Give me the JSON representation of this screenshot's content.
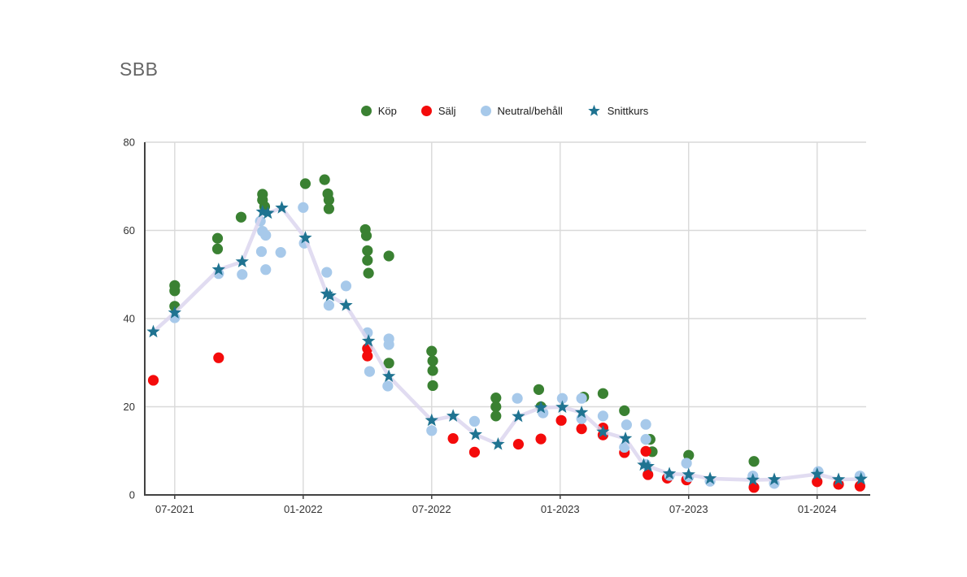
{
  "title": "SBB",
  "legend": {
    "items": [
      {
        "label": "Köp",
        "marker": "circle-icon"
      },
      {
        "label": "Sälj",
        "marker": "circle-icon"
      },
      {
        "label": "Neutral/behåll",
        "marker": "circle-icon"
      },
      {
        "label": "Snittkurs",
        "marker": "star-icon"
      }
    ]
  },
  "chart_data": {
    "type": "scatter",
    "title": "SBB",
    "xlabel": "",
    "ylabel": "",
    "x_unit": "months since 2021-06",
    "xticks": [
      {
        "t": 1,
        "label": "07-2021"
      },
      {
        "t": 7,
        "label": "01-2022"
      },
      {
        "t": 13,
        "label": "07-2022"
      },
      {
        "t": 19,
        "label": "01-2023"
      },
      {
        "t": 25,
        "label": "07-2023"
      },
      {
        "t": 31,
        "label": "01-2024"
      }
    ],
    "yticks": [
      0,
      20,
      40,
      60,
      80
    ],
    "ylim": [
      0,
      80
    ],
    "grid": true,
    "legend_position": "top-center",
    "colors": {
      "grid": "#d9d9d9",
      "axis": "#424242",
      "line": "#dcd6ef",
      "title_text": "#666666",
      "tick_text": "#333333"
    },
    "series": [
      {
        "name": "Köp",
        "marker": "circle",
        "color": "#3a8132",
        "points": [
          [
            1,
            47.5
          ],
          [
            1,
            46.3
          ],
          [
            1,
            42.8
          ],
          [
            3,
            58.2
          ],
          [
            3,
            55.8
          ],
          [
            4.1,
            63
          ],
          [
            5.1,
            68.2
          ],
          [
            5.1,
            66.9
          ],
          [
            5.2,
            65.4
          ],
          [
            7.1,
            70.6
          ],
          [
            8,
            71.5
          ],
          [
            8.15,
            68.3
          ],
          [
            8.2,
            66.9
          ],
          [
            8.2,
            64.9
          ],
          [
            9.9,
            60.2
          ],
          [
            9.95,
            58.8
          ],
          [
            10,
            55.4
          ],
          [
            10,
            53.2
          ],
          [
            10.05,
            50.3
          ],
          [
            11,
            54.2
          ],
          [
            11,
            29.9
          ],
          [
            13,
            32.6
          ],
          [
            13.05,
            30.4
          ],
          [
            13.05,
            28.2
          ],
          [
            13.05,
            24.8
          ],
          [
            16,
            22
          ],
          [
            16,
            20
          ],
          [
            16,
            17.9
          ],
          [
            18,
            23.9
          ],
          [
            18.1,
            20
          ],
          [
            20.1,
            22.2
          ],
          [
            21,
            23
          ],
          [
            22,
            19.1
          ],
          [
            23.2,
            12.6
          ],
          [
            23.3,
            9.8
          ],
          [
            25,
            9
          ],
          [
            28.05,
            7.6
          ]
        ]
      },
      {
        "name": "Sälj",
        "marker": "circle",
        "color": "#f40b0b",
        "points": [
          [
            0,
            26
          ],
          [
            3.05,
            31.1
          ],
          [
            10,
            33.2
          ],
          [
            10,
            31.5
          ],
          [
            14,
            12.8
          ],
          [
            15,
            9.7
          ],
          [
            17.05,
            11.5
          ],
          [
            18.1,
            12.7
          ],
          [
            19.05,
            16.9
          ],
          [
            20,
            15
          ],
          [
            21,
            15.2
          ],
          [
            21,
            13.6
          ],
          [
            22,
            9.6
          ],
          [
            23,
            9.9
          ],
          [
            23.1,
            4.6
          ],
          [
            24,
            3.8
          ],
          [
            24.9,
            3.4
          ],
          [
            28.05,
            1.7
          ],
          [
            31,
            3
          ],
          [
            32,
            2.4
          ],
          [
            33,
            2
          ]
        ]
      },
      {
        "name": "Neutral/behåll",
        "marker": "circle",
        "color": "#a7c9ea",
        "points": [
          [
            1,
            40.2
          ],
          [
            3.05,
            50.2
          ],
          [
            4.15,
            50
          ],
          [
            5,
            62.1
          ],
          [
            5.1,
            59.8
          ],
          [
            5.25,
            58.9
          ],
          [
            5.05,
            55.2
          ],
          [
            5.25,
            51.1
          ],
          [
            5.95,
            55
          ],
          [
            7,
            65.2
          ],
          [
            7.05,
            57.1
          ],
          [
            8.1,
            50.5
          ],
          [
            8.2,
            43
          ],
          [
            9,
            47.4
          ],
          [
            10,
            36.8
          ],
          [
            10.1,
            28
          ],
          [
            11,
            35.4
          ],
          [
            11,
            34.1
          ],
          [
            10.95,
            24.7
          ],
          [
            13,
            14.6
          ],
          [
            15,
            16.7
          ],
          [
            17,
            21.9
          ],
          [
            18.2,
            18.6
          ],
          [
            19.1,
            21.9
          ],
          [
            20,
            21.9
          ],
          [
            20,
            17.3
          ],
          [
            21,
            17.9
          ],
          [
            22.1,
            15.9
          ],
          [
            22,
            10.8
          ],
          [
            23,
            16
          ],
          [
            23,
            12.6
          ],
          [
            23,
            6.9
          ],
          [
            24.1,
            4.4
          ],
          [
            24.9,
            7.2
          ],
          [
            25,
            4.1
          ],
          [
            26,
            3.1
          ],
          [
            28,
            4.3
          ],
          [
            29,
            2.6
          ],
          [
            31.05,
            5.3
          ],
          [
            33,
            4.3
          ]
        ]
      },
      {
        "name": "Snittkurs",
        "marker": "star",
        "color": "#1f7391",
        "line": true,
        "line_color": "#dcd6ef",
        "points": [
          [
            0,
            37
          ],
          [
            1,
            41.3
          ],
          [
            3.05,
            51.1
          ],
          [
            4.15,
            52.9
          ],
          [
            5.1,
            64.2
          ],
          [
            5.35,
            63.9
          ],
          [
            6,
            65.1
          ],
          [
            7.1,
            58.3
          ],
          [
            8.1,
            45.6
          ],
          [
            8.25,
            45.2
          ],
          [
            9,
            43
          ],
          [
            10.05,
            34.9
          ],
          [
            11,
            26.9
          ],
          [
            13,
            16.9
          ],
          [
            14,
            17.9
          ],
          [
            15.05,
            13.7
          ],
          [
            16.1,
            11.5
          ],
          [
            17.05,
            17.8
          ],
          [
            18.1,
            19.8
          ],
          [
            19.1,
            19.9
          ],
          [
            20,
            18.7
          ],
          [
            21,
            14.3
          ],
          [
            22.05,
            12.8
          ],
          [
            22.9,
            6.8
          ],
          [
            23.1,
            6.5
          ],
          [
            24.1,
            4.8
          ],
          [
            25,
            4.6
          ],
          [
            26,
            3.7
          ],
          [
            28,
            3.4
          ],
          [
            29,
            3.5
          ],
          [
            31,
            4.7
          ],
          [
            32,
            3.5
          ],
          [
            33.05,
            3.6
          ]
        ]
      }
    ]
  }
}
